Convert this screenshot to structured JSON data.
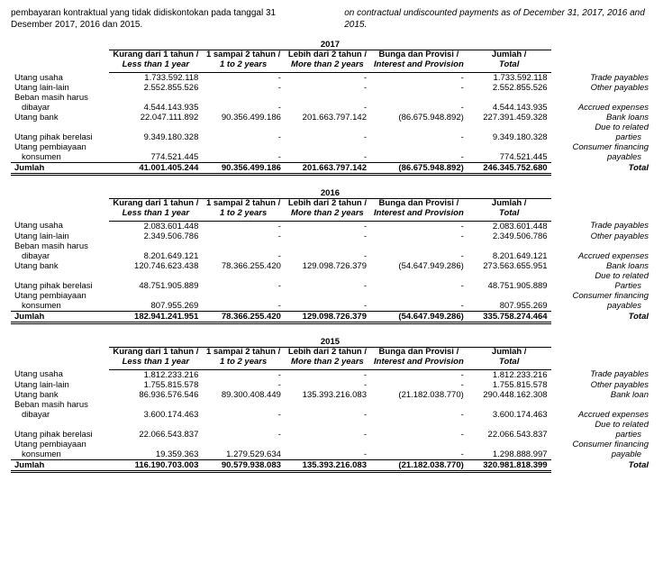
{
  "top": {
    "left": "pembayaran kontraktual yang tidak didiskontokan pada tanggal 31 Desember 2017, 2016 dan 2015.",
    "right": "on contractual undiscounted payments as of December 31, 2017, 2016 and 2015."
  },
  "headers": {
    "c1_id": "Kurang dari 1 tahun /",
    "c1_en": "Less than 1 year",
    "c2_id": "1 sampai 2 tahun /",
    "c2_en": "1 to 2 years",
    "c3_id": "Lebih dari 2 tahun /",
    "c3_en": "More than 2 years",
    "c4_id": "Bunga dan Provisi /",
    "c4_en": "Interest and Provision",
    "c5_id": "Jumlah /",
    "c5_en": "Total"
  },
  "rowLabels": {
    "utang_usaha": "Utang usaha",
    "utang_lain": "Utang lain-lain",
    "beban_masih": "Beban masih harus",
    "dibayar": "dibayar",
    "utang_bank": "Utang bank",
    "utang_pihak": "Utang pihak berelasi",
    "utang_pemb": "Utang pembiayaan",
    "konsumen": "konsumen",
    "jumlah": "Jumlah",
    "trade_payables": "Trade payables",
    "other_payables": "Other payables",
    "accrued": "Accrued expenses",
    "bank_loans": "Bank loans",
    "bank_loan": "Bank loan",
    "due_to": "Due to related",
    "parties_l": "parties",
    "parties_u": "Parties",
    "consumer": "Consumer financing",
    "payables": "payables",
    "payable": "payable",
    "total": "Total"
  },
  "y2017": {
    "year": "2017",
    "utang_usaha": [
      "1.733.592.118",
      "-",
      "-",
      "-",
      "1.733.592.118"
    ],
    "utang_lain": [
      "2.552.855.526",
      "-",
      "-",
      "-",
      "2.552.855.526"
    ],
    "beban_dibayar": [
      "4.544.143.935",
      "-",
      "-",
      "-",
      "4.544.143.935"
    ],
    "utang_bank": [
      "22.047.111.892",
      "90.356.499.186",
      "201.663.797.142",
      "(86.675.948.892)",
      "227.391.459.328"
    ],
    "utang_pihak": [
      "9.349.180.328",
      "-",
      "-",
      "-",
      "9.349.180.328"
    ],
    "konsumen": [
      "774.521.445",
      "-",
      "-",
      "-",
      "774.521.445"
    ],
    "jumlah": [
      "41.001.405.244",
      "90.356.499.186",
      "201.663.797.142",
      "(86.675.948.892)",
      "246.345.752.680"
    ]
  },
  "y2016": {
    "year": "2016",
    "utang_usaha": [
      "2.083.601.448",
      "-",
      "-",
      "-",
      "2.083.601.448"
    ],
    "utang_lain": [
      "2.349.506.786",
      "-",
      "-",
      "-",
      "2.349.506.786"
    ],
    "beban_dibayar": [
      "8.201.649.121",
      "-",
      "-",
      "-",
      "8.201.649.121"
    ],
    "utang_bank": [
      "120.746.623.438",
      "78.366.255.420",
      "129.098.726.379",
      "(54.647.949.286)",
      "273.563.655.951"
    ],
    "utang_pihak": [
      "48.751.905.889",
      "-",
      "-",
      "-",
      "48.751.905.889"
    ],
    "konsumen": [
      "807.955.269",
      "-",
      "-",
      "-",
      "807.955.269"
    ],
    "jumlah": [
      "182.941.241.951",
      "78.366.255.420",
      "129.098.726.379",
      "(54.647.949.286)",
      "335.758.274.464"
    ]
  },
  "y2015": {
    "year": "2015",
    "utang_usaha": [
      "1.812.233.216",
      "-",
      "-",
      "-",
      "1.812.233.216"
    ],
    "utang_lain": [
      "1.755.815.578",
      "-",
      "-",
      "-",
      "1.755.815.578"
    ],
    "utang_bank": [
      "86.936.576.546",
      "89.300.408.449",
      "135.393.216.083",
      "(21.182.038.770)",
      "290.448.162.308"
    ],
    "beban_dibayar": [
      "3.600.174.463",
      "-",
      "-",
      "-",
      "3.600.174.463"
    ],
    "utang_pihak": [
      "22.066.543.837",
      "-",
      "-",
      "-",
      "22.066.543.837"
    ],
    "konsumen": [
      "19.359.363",
      "1.279.529.634",
      "-",
      "-",
      "1.298.888.997"
    ],
    "jumlah": [
      "116.190.703.003",
      "90.579.938.083",
      "135.393.216.083",
      "(21.182.038.770)",
      "320.981.818.399"
    ]
  }
}
